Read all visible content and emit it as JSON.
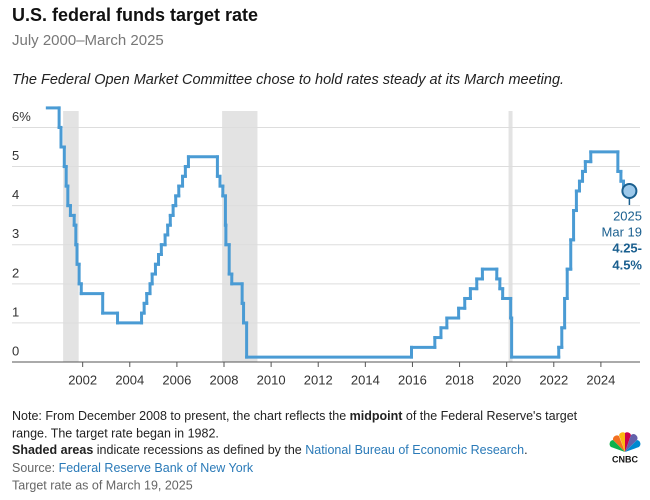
{
  "chart_data": {
    "type": "step",
    "title": "U.S. federal funds target rate",
    "subtitle": "July 2000–March 2025",
    "annotation": "The Federal Open Market Committee chose to hold rates steady at its March meeting.",
    "color": "#4a9bd4",
    "recession_color": "#e3e3e3",
    "grid": true,
    "xlim": [
      1999,
      2025.66
    ],
    "ylim": [
      0,
      6.6
    ],
    "xticks": [
      2002,
      2004,
      2006,
      2008,
      2010,
      2012,
      2014,
      2016,
      2018,
      2020,
      2022,
      2024
    ],
    "yticks": [
      0,
      1,
      2,
      3,
      4,
      5,
      {
        "value": 6,
        "label": "6%"
      }
    ],
    "recessions": [
      [
        2001.17,
        2001.83
      ],
      [
        2007.92,
        2009.42
      ],
      [
        2020.08,
        2020.25
      ]
    ],
    "x": [
      2000.5,
      2001.0,
      2001.08,
      2001.22,
      2001.3,
      2001.37,
      2001.48,
      2001.64,
      2001.71,
      2001.76,
      2001.85,
      2001.94,
      2002.85,
      2003.48,
      2004.5,
      2004.61,
      2004.72,
      2004.86,
      2004.95,
      2005.09,
      2005.22,
      2005.34,
      2005.5,
      2005.61,
      2005.72,
      2005.84,
      2005.95,
      2006.08,
      2006.24,
      2006.36,
      2006.49,
      2007.72,
      2007.83,
      2007.95,
      2008.06,
      2008.08,
      2008.22,
      2008.33,
      2008.77,
      2008.83,
      2008.96,
      2015.96,
      2016.95,
      2017.21,
      2017.46,
      2017.96,
      2018.22,
      2018.46,
      2018.73,
      2018.97,
      2019.58,
      2019.71,
      2019.83,
      2020.17,
      2020.21,
      2022.21,
      2022.34,
      2022.46,
      2022.57,
      2022.72,
      2022.84,
      2022.96,
      2023.09,
      2023.22,
      2023.34,
      2023.57,
      2024.72,
      2024.85,
      2024.96,
      2025.21
    ],
    "values": [
      6.5,
      6.0,
      5.5,
      5.0,
      4.5,
      4.0,
      3.75,
      3.5,
      3.0,
      2.5,
      2.0,
      1.75,
      1.25,
      1.0,
      1.25,
      1.5,
      1.75,
      2.0,
      2.25,
      2.5,
      2.75,
      3.0,
      3.25,
      3.5,
      3.75,
      4.0,
      4.25,
      4.5,
      4.75,
      5.0,
      5.25,
      4.75,
      4.5,
      4.25,
      3.5,
      3.0,
      2.25,
      2.0,
      1.5,
      1.0,
      0.125,
      0.375,
      0.625,
      0.875,
      1.125,
      1.375,
      1.625,
      1.875,
      2.125,
      2.375,
      2.125,
      1.875,
      1.625,
      1.125,
      0.125,
      0.375,
      0.875,
      1.625,
      2.375,
      3.125,
      3.875,
      4.375,
      4.625,
      4.875,
      5.125,
      5.375,
      4.875,
      4.625,
      4.375,
      4.375
    ],
    "end_label": {
      "year": "2025",
      "date": "Mar 19",
      "value_lines": [
        "4.25-",
        "4.5%"
      ]
    },
    "notes": {
      "line1": [
        "Note: From December 2008 to present, the chart reflects the ",
        "midpoint",
        " of the Federal Reserve's target"
      ],
      "line2": "range. The target rate began in 1982.",
      "line3": [
        "Shaded areas",
        " indicate recessions as defined by the ",
        "National Bureau of Economic Research",
        "."
      ],
      "source": [
        "Source: ",
        "Federal Reserve Bank of New York"
      ],
      "footer": "Target rate as of March 19, 2025"
    },
    "logo": "CNBC"
  }
}
